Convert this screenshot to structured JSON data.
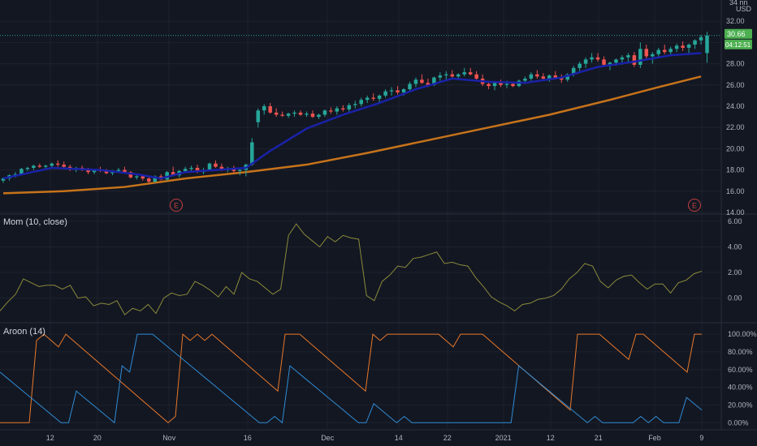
{
  "colors": {
    "background": "#131722",
    "grid": "#1e222d",
    "text": "#b2b5be",
    "up": "#26a69a",
    "down": "#ef5350",
    "ema_fast": "#1a22a8",
    "sma_slow": "#c7731a",
    "momentum": "#8a8a3a",
    "aroon_up": "#e8782a",
    "aroon_down": "#2f8cd6",
    "price_label": "#4caf50",
    "earnings": "#c04040"
  },
  "price_axis": {
    "top_partial": "34 nn",
    "currency": "USD",
    "ticks": [
      "32.00",
      "30.00",
      "28.00",
      "26.00",
      "24.00",
      "22.00",
      "20.00",
      "18.00",
      "16.00",
      "14.00"
    ],
    "last_price": "30.66",
    "countdown": "04:12:51"
  },
  "momentum_pane": {
    "label": "Mom (10, close)",
    "ticks": [
      "6.00",
      "4.00",
      "2.00",
      "0.00"
    ]
  },
  "aroon_pane": {
    "label": "Aroon (14)",
    "ticks": [
      "100.00%",
      "80.00%",
      "60.00%",
      "40.00%",
      "20.00%",
      "0.00%"
    ]
  },
  "x_axis": {
    "ticks": [
      "12",
      "20",
      "Nov",
      "16",
      "Dec",
      "14",
      "22",
      "2021",
      "12",
      "21",
      "Feb",
      "9"
    ]
  },
  "earnings_markers": [
    "E",
    "E"
  ],
  "chart_data": [
    {
      "type": "candlestick",
      "title": "",
      "ylim": [
        14,
        34
      ],
      "x_ticks": [
        "12",
        "20",
        "Nov",
        "16",
        "Dec",
        "14",
        "22",
        "2021",
        "12",
        "21",
        "Feb",
        "9"
      ],
      "candles": [
        [
          17.0,
          17.3,
          16.8,
          17.2
        ],
        [
          17.2,
          17.6,
          17.0,
          17.5
        ],
        [
          17.5,
          17.8,
          17.3,
          17.6
        ],
        [
          17.6,
          18.2,
          17.5,
          18.1
        ],
        [
          18.1,
          18.3,
          17.9,
          18.2
        ],
        [
          18.2,
          18.5,
          18.0,
          18.4
        ],
        [
          18.4,
          18.6,
          18.2,
          18.3
        ],
        [
          18.3,
          18.5,
          18.1,
          18.4
        ],
        [
          18.4,
          18.7,
          18.2,
          18.6
        ],
        [
          18.6,
          18.9,
          18.3,
          18.5
        ],
        [
          18.5,
          18.8,
          18.2,
          18.3
        ],
        [
          18.3,
          18.5,
          17.9,
          18.1
        ],
        [
          18.1,
          18.3,
          17.8,
          18.2
        ],
        [
          18.2,
          18.4,
          17.9,
          18.0
        ],
        [
          18.0,
          18.2,
          17.6,
          17.8
        ],
        [
          17.8,
          18.1,
          17.6,
          18.0
        ],
        [
          18.0,
          18.3,
          17.8,
          17.9
        ],
        [
          17.9,
          18.1,
          17.6,
          17.7
        ],
        [
          17.7,
          18.0,
          17.5,
          17.9
        ],
        [
          17.9,
          18.2,
          17.7,
          18.0
        ],
        [
          18.0,
          18.3,
          17.7,
          17.8
        ],
        [
          17.8,
          17.9,
          17.2,
          17.3
        ],
        [
          17.3,
          17.6,
          17.1,
          17.4
        ],
        [
          17.4,
          17.6,
          17.0,
          17.2
        ],
        [
          17.2,
          17.4,
          16.8,
          16.9
        ],
        [
          16.9,
          17.5,
          16.8,
          17.4
        ],
        [
          17.4,
          17.6,
          17.0,
          17.1
        ],
        [
          17.1,
          17.9,
          17.0,
          17.8
        ],
        [
          17.8,
          18.3,
          17.4,
          17.5
        ],
        [
          17.5,
          18.0,
          17.3,
          17.9
        ],
        [
          17.9,
          18.3,
          17.7,
          18.1
        ],
        [
          18.1,
          18.4,
          17.8,
          18.2
        ],
        [
          18.2,
          18.5,
          17.7,
          17.8
        ],
        [
          17.8,
          18.2,
          17.6,
          18.0
        ],
        [
          18.0,
          18.7,
          17.9,
          18.6
        ],
        [
          18.6,
          18.9,
          18.2,
          18.3
        ],
        [
          18.3,
          18.6,
          17.9,
          18.0
        ],
        [
          18.0,
          18.3,
          17.8,
          18.1
        ],
        [
          18.1,
          18.4,
          17.7,
          17.9
        ],
        [
          17.9,
          18.2,
          17.5,
          18.0
        ],
        [
          18.0,
          18.6,
          17.4,
          18.5
        ],
        [
          18.5,
          21.0,
          18.4,
          20.6
        ],
        [
          22.5,
          23.8,
          22.0,
          23.6
        ],
        [
          23.6,
          24.2,
          23.2,
          24.0
        ],
        [
          24.0,
          24.3,
          23.3,
          23.4
        ],
        [
          23.4,
          23.8,
          23.0,
          23.2
        ],
        [
          23.2,
          23.5,
          23.0,
          23.1
        ],
        [
          23.1,
          23.4,
          22.9,
          23.3
        ],
        [
          23.3,
          23.6,
          23.0,
          23.4
        ],
        [
          23.4,
          23.6,
          23.1,
          23.2
        ],
        [
          23.2,
          23.5,
          23.0,
          23.3
        ],
        [
          23.3,
          23.6,
          22.9,
          23.0
        ],
        [
          23.0,
          23.3,
          22.8,
          23.2
        ],
        [
          23.2,
          23.7,
          23.0,
          23.6
        ],
        [
          23.6,
          23.9,
          23.3,
          23.5
        ],
        [
          23.5,
          24.0,
          23.2,
          23.8
        ],
        [
          23.8,
          24.1,
          23.5,
          23.7
        ],
        [
          23.7,
          24.3,
          23.5,
          24.1
        ],
        [
          24.1,
          24.5,
          23.8,
          24.2
        ],
        [
          24.2,
          24.8,
          24.0,
          24.6
        ],
        [
          24.6,
          25.0,
          24.3,
          24.8
        ],
        [
          24.8,
          25.2,
          24.5,
          24.7
        ],
        [
          24.7,
          25.1,
          24.4,
          25.0
        ],
        [
          25.0,
          25.6,
          24.8,
          25.4
        ],
        [
          25.4,
          25.8,
          25.0,
          25.5
        ],
        [
          25.5,
          25.9,
          25.1,
          25.3
        ],
        [
          25.3,
          25.7,
          25.0,
          25.6
        ],
        [
          25.6,
          26.3,
          25.4,
          26.1
        ],
        [
          26.1,
          26.7,
          25.8,
          26.5
        ],
        [
          26.5,
          27.0,
          26.1,
          26.2
        ],
        [
          26.2,
          26.6,
          25.8,
          26.0
        ],
        [
          26.0,
          26.8,
          25.9,
          26.7
        ],
        [
          26.7,
          27.2,
          26.4,
          26.9
        ],
        [
          26.9,
          27.3,
          26.5,
          27.0
        ],
        [
          27.0,
          27.4,
          26.7,
          26.8
        ],
        [
          26.8,
          27.1,
          26.5,
          27.0
        ],
        [
          27.0,
          27.6,
          26.8,
          27.2
        ],
        [
          27.2,
          27.6,
          26.9,
          27.0
        ],
        [
          27.0,
          27.3,
          26.4,
          26.6
        ],
        [
          26.6,
          27.0,
          25.9,
          26.1
        ],
        [
          26.1,
          26.4,
          25.6,
          25.9
        ],
        [
          25.9,
          26.3,
          25.5,
          26.2
        ],
        [
          26.2,
          26.5,
          25.8,
          26.0
        ],
        [
          26.0,
          26.4,
          25.7,
          26.1
        ],
        [
          26.1,
          26.3,
          25.8,
          25.9
        ],
        [
          25.9,
          26.5,
          25.8,
          26.4
        ],
        [
          26.4,
          26.8,
          26.1,
          26.6
        ],
        [
          26.6,
          27.2,
          26.4,
          27.0
        ],
        [
          27.0,
          27.4,
          26.6,
          26.8
        ],
        [
          26.8,
          27.1,
          26.4,
          26.6
        ],
        [
          26.6,
          27.0,
          26.3,
          26.9
        ],
        [
          26.9,
          27.3,
          26.6,
          26.7
        ],
        [
          26.7,
          27.0,
          26.2,
          26.5
        ],
        [
          26.5,
          27.1,
          26.3,
          27.0
        ],
        [
          27.0,
          27.8,
          26.8,
          27.6
        ],
        [
          27.6,
          28.2,
          27.3,
          28.0
        ],
        [
          28.0,
          28.6,
          27.6,
          28.4
        ],
        [
          28.4,
          29.0,
          28.1,
          28.6
        ],
        [
          28.6,
          29.0,
          28.2,
          28.4
        ],
        [
          28.4,
          28.7,
          27.7,
          27.9
        ],
        [
          27.9,
          28.2,
          27.4,
          28.1
        ],
        [
          28.1,
          28.5,
          27.8,
          28.4
        ],
        [
          28.4,
          28.8,
          27.9,
          28.6
        ],
        [
          28.6,
          29.0,
          28.2,
          28.8
        ],
        [
          28.8,
          29.1,
          27.7,
          27.9
        ],
        [
          27.9,
          30.0,
          27.6,
          29.4
        ],
        [
          29.4,
          29.8,
          28.5,
          28.7
        ],
        [
          28.7,
          29.1,
          28.0,
          28.9
        ],
        [
          28.9,
          29.5,
          28.5,
          29.3
        ],
        [
          29.3,
          29.8,
          28.9,
          29.1
        ],
        [
          29.1,
          29.6,
          28.8,
          29.4
        ],
        [
          29.4,
          29.9,
          29.1,
          29.7
        ],
        [
          29.7,
          30.1,
          29.2,
          29.5
        ],
        [
          29.5,
          29.9,
          29.0,
          29.8
        ],
        [
          29.8,
          30.3,
          29.4,
          30.2
        ],
        [
          30.2,
          30.7,
          29.8,
          30.5
        ],
        [
          29.0,
          31.0,
          28.1,
          30.66
        ]
      ],
      "ema_fast": [
        [
          0,
          17.2
        ],
        [
          8,
          18.2
        ],
        [
          16,
          18.0
        ],
        [
          22,
          17.6
        ],
        [
          26,
          17.2
        ],
        [
          30,
          17.8
        ],
        [
          35,
          18.0
        ],
        [
          40,
          18.2
        ],
        [
          44,
          19.8
        ],
        [
          50,
          21.9
        ],
        [
          56,
          23.2
        ],
        [
          62,
          24.3
        ],
        [
          68,
          25.6
        ],
        [
          74,
          26.6
        ],
        [
          80,
          26.3
        ],
        [
          86,
          26.2
        ],
        [
          92,
          26.7
        ],
        [
          98,
          27.7
        ],
        [
          104,
          28.2
        ],
        [
          110,
          28.8
        ],
        [
          115,
          29.0
        ]
      ],
      "sma_slow": [
        [
          0,
          15.8
        ],
        [
          10,
          16.0
        ],
        [
          20,
          16.4
        ],
        [
          30,
          17.2
        ],
        [
          40,
          17.8
        ],
        [
          50,
          18.5
        ],
        [
          60,
          19.6
        ],
        [
          70,
          20.8
        ],
        [
          80,
          22.0
        ],
        [
          90,
          23.2
        ],
        [
          100,
          24.6
        ],
        [
          108,
          25.8
        ],
        [
          115,
          26.8
        ]
      ]
    },
    {
      "type": "line",
      "title": "Mom (10, close)",
      "ylim": [
        -1.8,
        6.5
      ],
      "series": [
        {
          "values": [
            -1.0,
            -0.3,
            0.3,
            1.5,
            1.2,
            0.9,
            1.0,
            1.0,
            0.7,
            1.0,
            0.0,
            0.1,
            -0.6,
            -0.4,
            -0.5,
            -0.2,
            -1.3,
            -0.8,
            -1.0,
            -0.5,
            -1.2,
            0.0,
            0.4,
            0.2,
            0.3,
            1.3,
            1.0,
            0.6,
            0.1,
            0.9,
            0.3,
            2.0,
            1.5,
            1.3,
            0.8,
            0.3,
            0.7,
            4.9,
            5.8,
            5.0,
            4.5,
            4.0,
            4.8,
            4.4,
            4.9,
            4.7,
            4.6,
            0.2,
            -0.2,
            1.3,
            1.8,
            2.5,
            2.4,
            3.1,
            3.2,
            3.4,
            3.6,
            2.7,
            2.8,
            2.6,
            2.5,
            1.6,
            0.9,
            0.1,
            -0.3,
            -0.6,
            -1.0,
            -0.5,
            -0.4,
            -0.1,
            0.0,
            0.2,
            0.7,
            1.5,
            2.0,
            2.7,
            2.5,
            1.3,
            0.8,
            1.4,
            1.7,
            1.8,
            1.2,
            0.7,
            1.1,
            1.1,
            0.4,
            1.2,
            1.4,
            1.9,
            2.1
          ]
        }
      ]
    },
    {
      "type": "line",
      "title": "Aroon (14)",
      "ylim": [
        -8,
        112
      ],
      "series": [
        {
          "name": "Aroon Up",
          "values": [
            0,
            0,
            0,
            0,
            0,
            92.86,
            100,
            92.86,
            85.71,
            100,
            92.86,
            85.71,
            78.57,
            71.43,
            64.29,
            57.14,
            50,
            42.86,
            35.71,
            28.57,
            21.43,
            14.29,
            7.14,
            0,
            7.14,
            100,
            92.86,
            100,
            92.86,
            100,
            92.86,
            85.71,
            78.57,
            71.43,
            64.29,
            57.14,
            50,
            42.86,
            35.71,
            100,
            100,
            100,
            92.86,
            85.71,
            78.57,
            71.43,
            64.29,
            57.14,
            50,
            42.86,
            35.71,
            100,
            92.86,
            100,
            100,
            100,
            100,
            100,
            100,
            100,
            100,
            92.86,
            85.71,
            100,
            100,
            100,
            100,
            92.86,
            85.71,
            78.57,
            71.43,
            64.29,
            57.14,
            50,
            42.86,
            35.71,
            28.57,
            21.43,
            14.29,
            100,
            100,
            100,
            100,
            92.86,
            85.71,
            78.57,
            71.43,
            100,
            100,
            92.86,
            85.71,
            78.57,
            71.43,
            64.29,
            57.14,
            100,
            100
          ]
        },
        {
          "name": "Aroon Down",
          "values": [
            57.14,
            50,
            42.86,
            35.71,
            28.57,
            21.43,
            14.29,
            7.14,
            0,
            0,
            35.71,
            28.57,
            21.43,
            14.29,
            7.14,
            0,
            64.29,
            57.14,
            100,
            100,
            100,
            92.86,
            85.71,
            78.57,
            71.43,
            64.29,
            57.14,
            50,
            42.86,
            35.71,
            28.57,
            21.43,
            14.29,
            7.14,
            0,
            0,
            7.14,
            0,
            64.29,
            57.14,
            50,
            42.86,
            35.71,
            28.57,
            21.43,
            14.29,
            7.14,
            0,
            0,
            21.43,
            14.29,
            7.14,
            0,
            7.14,
            0,
            0,
            0,
            0,
            0,
            0,
            0,
            0,
            0,
            0,
            0,
            0,
            0,
            0,
            64.29,
            57.14,
            50,
            42.86,
            35.71,
            28.57,
            21.43,
            14.29,
            7.14,
            0,
            7.14,
            0,
            0,
            0,
            0,
            0,
            7.14,
            0,
            7.14,
            0,
            0,
            0,
            28.57,
            21.43,
            14.29
          ]
        }
      ]
    }
  ]
}
